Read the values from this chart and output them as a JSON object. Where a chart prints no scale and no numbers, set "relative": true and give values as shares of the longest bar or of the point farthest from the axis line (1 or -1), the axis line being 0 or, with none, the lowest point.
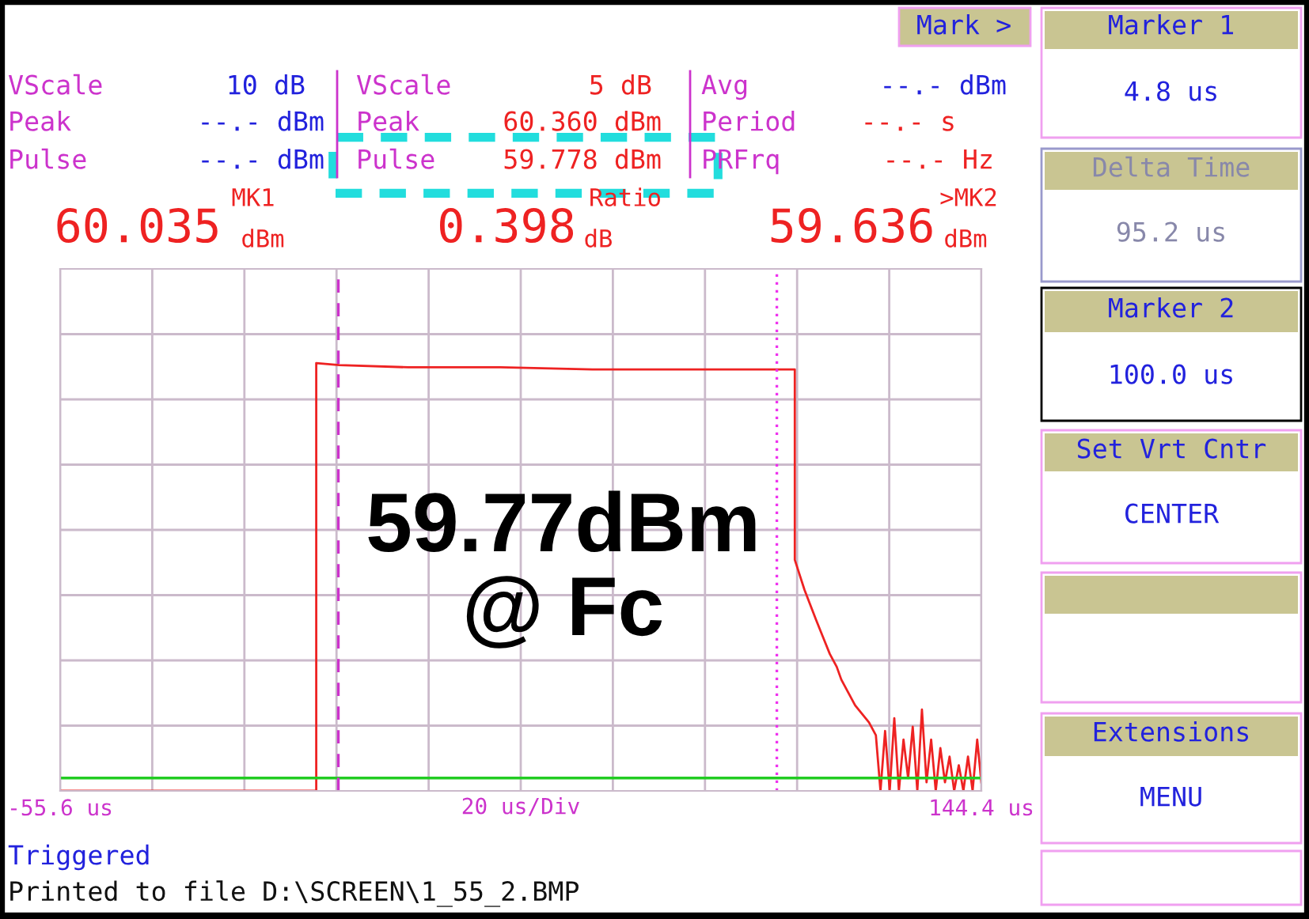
{
  "chart_data": {
    "type": "line",
    "relative": true,
    "tick_labels": "x",
    "grid": true,
    "xlabel": "20 us/Div",
    "xlim": [
      -55.6,
      144.4
    ],
    "xticks": [
      {
        "value": -55.6,
        "label": "-55.6 us"
      },
      {
        "value": -35.6,
        "label": null
      },
      {
        "value": -15.6,
        "label": null
      },
      {
        "value": 4.4,
        "label": null
      },
      {
        "value": 24.4,
        "label": null
      },
      {
        "value": 44.4,
        "label": null
      },
      {
        "value": 64.4,
        "label": null
      },
      {
        "value": 84.4,
        "label": null
      },
      {
        "value": 104.4,
        "label": null
      },
      {
        "value": 124.4,
        "label": null
      },
      {
        "value": 144.4,
        "label": "144.4 us"
      }
    ],
    "series": [
      {
        "color": "#ee2222",
        "x": [
          -55.6,
          0,
          0,
          5,
          20,
          40,
          60,
          80,
          95,
          103.9,
          103.9,
          104.5,
          106,
          108.5,
          110,
          111.5,
          113,
          114,
          115.5,
          117,
          118.5,
          120,
          121.5,
          122.5,
          123.5,
          124.5,
          125.5,
          126.5,
          127.5,
          128.5,
          129.5,
          130.5,
          131.5,
          132.5,
          133.5,
          134.5,
          135.5,
          136.5,
          137.5,
          138.5,
          139.5,
          140.5,
          141.5,
          142.5,
          143.5,
          144.4
        ],
        "values": [
          0,
          0,
          1,
          0.995,
          0.99,
          0.99,
          0.985,
          0.985,
          0.985,
          0.985,
          0.54,
          0.52,
          0.47,
          0.4,
          0.36,
          0.32,
          0.29,
          0.26,
          0.23,
          0.2,
          0.18,
          0.16,
          0.13,
          0,
          0.14,
          0,
          0.17,
          0,
          0.12,
          0.03,
          0.15,
          0,
          0.19,
          0.02,
          0.12,
          0,
          0.1,
          0.02,
          0.08,
          0,
          0.06,
          0,
          0.08,
          0,
          0.12,
          0.02
        ]
      }
    ],
    "ref_lines": [
      {
        "axis": "y",
        "value": 0.03,
        "color": "#22cc22",
        "line_style": "solid"
      },
      {
        "axis": "x",
        "value": 4.8,
        "color": "#cc33cc",
        "line_style": "dashed"
      },
      {
        "axis": "x",
        "value": 100.0,
        "color": "#ee33ee",
        "line_style": "dotted"
      }
    ],
    "annotations": [
      "VScale",
      "10 dB",
      "Peak",
      "--.- dBm",
      "Pulse",
      "--.- dBm",
      "VScale",
      "5 dB",
      "Peak",
      "60.360 dBm",
      "Pulse",
      "59.778 dBm",
      "Avg",
      "--.- dBm",
      "Period",
      "--.- s",
      "PRFrq",
      "--.- Hz",
      "MK1",
      "60.035",
      "dBm",
      "Ratio",
      "0.398",
      "dB",
      ">MK2",
      "59.636",
      "dBm",
      "Mark >",
      "Marker 1",
      "4.8 us",
      "Delta Time",
      "95.2 us",
      "Marker 2",
      "100.0 us",
      "Set Vrt Cntr",
      "CENTER",
      "Extensions",
      "MENU",
      "Triggered",
      "Printed to file D:\\SCREEN\\1_55_2.BMP",
      "59.77dBm\n@ Fc"
    ]
  }
}
